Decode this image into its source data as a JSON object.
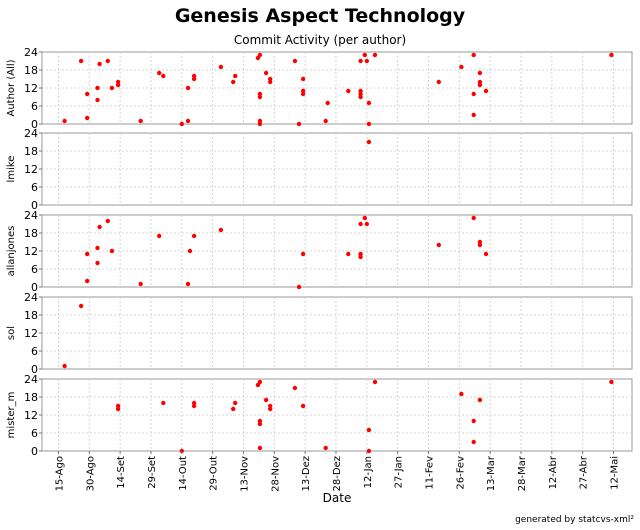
{
  "title": "Genesis Aspect Technology",
  "subtitle": "Commit Activity (per author)",
  "footer": "generated by statcvs-xml²",
  "chart_data": {
    "type": "scatter",
    "title": "Genesis Aspect Technology",
    "subtitle": "Commit Activity (per author)",
    "xlabel": "Date",
    "x_ticks": [
      "15-Ago",
      "30-Ago",
      "14-Set",
      "29-Set",
      "14-Out",
      "29-Out",
      "13-Nov",
      "28-Nov",
      "13-Dez",
      "28-Dez",
      "12-Jan",
      "27-Jan",
      "11-Fev",
      "26-Fev",
      "13-Mar",
      "28-Mar",
      "12-Abr",
      "27-Abr",
      "12-Mai"
    ],
    "xlim": [
      "2004-08-07",
      "2005-05-21"
    ],
    "ylim": [
      0,
      24
    ],
    "y_ticks": [
      0,
      6,
      12,
      18,
      24
    ],
    "grid": true,
    "marker_color": "#ff0000",
    "panels": [
      {
        "ylabel": "Author (All)",
        "points": [
          [
            "2004-08-18",
            1
          ],
          [
            "2004-08-26",
            21
          ],
          [
            "2004-08-29",
            10
          ],
          [
            "2004-08-29",
            2
          ],
          [
            "2004-09-03",
            12
          ],
          [
            "2004-09-03",
            8
          ],
          [
            "2004-09-04",
            20
          ],
          [
            "2004-09-08",
            21
          ],
          [
            "2004-09-10",
            12
          ],
          [
            "2004-09-13",
            14
          ],
          [
            "2004-09-13",
            13
          ],
          [
            "2004-09-24",
            1
          ],
          [
            "2004-10-03",
            17
          ],
          [
            "2004-10-05",
            16
          ],
          [
            "2004-10-14",
            0
          ],
          [
            "2004-10-17",
            1
          ],
          [
            "2004-10-17",
            12
          ],
          [
            "2004-10-20",
            16
          ],
          [
            "2004-10-20",
            15
          ],
          [
            "2004-11-02",
            19
          ],
          [
            "2004-11-08",
            14
          ],
          [
            "2004-11-09",
            16
          ],
          [
            "2004-11-20",
            22
          ],
          [
            "2004-11-21",
            23
          ],
          [
            "2004-11-21",
            10
          ],
          [
            "2004-11-21",
            9
          ],
          [
            "2004-11-21",
            1
          ],
          [
            "2004-11-21",
            0
          ],
          [
            "2004-11-24",
            17
          ],
          [
            "2004-11-26",
            15
          ],
          [
            "2004-11-26",
            14
          ],
          [
            "2004-12-08",
            21
          ],
          [
            "2004-12-10",
            0
          ],
          [
            "2004-12-12",
            15
          ],
          [
            "2004-12-12",
            11
          ],
          [
            "2004-12-12",
            10
          ],
          [
            "2004-12-23",
            1
          ],
          [
            "2004-12-24",
            7
          ],
          [
            "2005-01-03",
            11
          ],
          [
            "2005-01-09",
            21
          ],
          [
            "2005-01-09",
            11
          ],
          [
            "2005-01-09",
            10
          ],
          [
            "2005-01-09",
            9
          ],
          [
            "2005-01-11",
            23
          ],
          [
            "2005-01-12",
            21
          ],
          [
            "2005-01-13",
            7
          ],
          [
            "2005-01-13",
            0
          ],
          [
            "2005-01-16",
            23
          ],
          [
            "2005-02-16",
            14
          ],
          [
            "2005-02-27",
            19
          ],
          [
            "2005-03-05",
            23
          ],
          [
            "2005-03-05",
            10
          ],
          [
            "2005-03-05",
            3
          ],
          [
            "2005-03-08",
            17
          ],
          [
            "2005-03-08",
            14
          ],
          [
            "2005-03-08",
            13
          ],
          [
            "2005-03-11",
            11
          ],
          [
            "2005-05-11",
            23
          ]
        ]
      },
      {
        "ylabel": "lmike",
        "points": [
          [
            "2005-01-13",
            21
          ]
        ]
      },
      {
        "ylabel": "allanjones",
        "points": [
          [
            "2004-08-29",
            11
          ],
          [
            "2004-08-29",
            2
          ],
          [
            "2004-09-03",
            13
          ],
          [
            "2004-09-03",
            8
          ],
          [
            "2004-09-04",
            20
          ],
          [
            "2004-09-08",
            22
          ],
          [
            "2004-09-10",
            12
          ],
          [
            "2004-09-24",
            1
          ],
          [
            "2004-10-03",
            17
          ],
          [
            "2004-10-17",
            1
          ],
          [
            "2004-10-18",
            12
          ],
          [
            "2004-10-20",
            17
          ],
          [
            "2004-11-02",
            19
          ],
          [
            "2004-12-10",
            0
          ],
          [
            "2004-12-12",
            11
          ],
          [
            "2005-01-03",
            11
          ],
          [
            "2005-01-09",
            21
          ],
          [
            "2005-01-09",
            11
          ],
          [
            "2005-01-09",
            10
          ],
          [
            "2005-01-11",
            23
          ],
          [
            "2005-01-12",
            21
          ],
          [
            "2005-02-16",
            14
          ],
          [
            "2005-03-05",
            23
          ],
          [
            "2005-03-08",
            15
          ],
          [
            "2005-03-08",
            14
          ],
          [
            "2005-03-11",
            11
          ]
        ]
      },
      {
        "ylabel": "sol",
        "points": [
          [
            "2004-08-18",
            1
          ],
          [
            "2004-08-26",
            21
          ]
        ]
      },
      {
        "ylabel": "mister_m",
        "points": [
          [
            "2004-09-13",
            15
          ],
          [
            "2004-09-13",
            14
          ],
          [
            "2004-10-05",
            16
          ],
          [
            "2004-10-14",
            0
          ],
          [
            "2004-10-20",
            16
          ],
          [
            "2004-10-20",
            15
          ],
          [
            "2004-11-08",
            14
          ],
          [
            "2004-11-09",
            16
          ],
          [
            "2004-11-20",
            22
          ],
          [
            "2004-11-21",
            23
          ],
          [
            "2004-11-21",
            10
          ],
          [
            "2004-11-21",
            9
          ],
          [
            "2004-11-21",
            1
          ],
          [
            "2004-11-24",
            17
          ],
          [
            "2004-11-26",
            15
          ],
          [
            "2004-11-26",
            14
          ],
          [
            "2004-12-08",
            21
          ],
          [
            "2004-12-12",
            15
          ],
          [
            "2004-12-23",
            1
          ],
          [
            "2005-01-13",
            7
          ],
          [
            "2005-01-13",
            0
          ],
          [
            "2005-01-16",
            23
          ],
          [
            "2005-02-27",
            19
          ],
          [
            "2005-03-05",
            10
          ],
          [
            "2005-03-05",
            3
          ],
          [
            "2005-03-08",
            17
          ],
          [
            "2005-05-11",
            23
          ]
        ]
      }
    ]
  }
}
